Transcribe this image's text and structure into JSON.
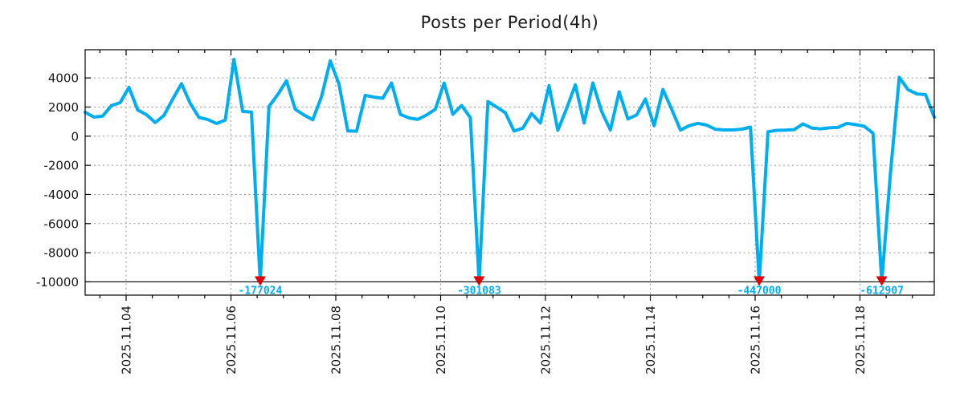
{
  "chart_data": {
    "type": "line",
    "title": "Posts per Period(4h)",
    "period": "4h",
    "line_color": "#00AEF0",
    "annotation_text_color": "#00AEF0",
    "arrow_color": "#E00000",
    "grid": true,
    "grid_color": "#999999",
    "x_tick_labels": [
      "2025.11.04",
      "2025.11.06",
      "2025.11.08",
      "2025.11.10",
      "2025.11.12",
      "2025.11.14",
      "2025.11.16",
      "2025.11.18"
    ],
    "y_ticks": [
      4000,
      2000,
      0,
      -2000,
      -4000,
      -6000,
      -8000,
      -10000
    ],
    "ylim": [
      -10911,
      5933
    ],
    "clip_min": -10000,
    "baseline_rule_value": -10000,
    "values": [
      1640,
      1310,
      1380,
      2100,
      2300,
      3350,
      1800,
      1475,
      935,
      1420,
      2550,
      3600,
      2250,
      1280,
      1150,
      870,
      1100,
      5270,
      1700,
      1650,
      -177024,
      2040,
      2850,
      3800,
      1850,
      1450,
      1130,
      2700,
      5160,
      3570,
      360,
      340,
      2800,
      2680,
      2600,
      3650,
      1500,
      1250,
      1150,
      1450,
      1850,
      3650,
      1500,
      2100,
      1270,
      -301083,
      2370,
      2000,
      1600,
      350,
      550,
      1550,
      900,
      3470,
      400,
      1900,
      3530,
      900,
      3650,
      1700,
      420,
      3050,
      1180,
      1450,
      2550,
      720,
      3200,
      1850,
      420,
      720,
      880,
      760,
      470,
      430,
      430,
      480,
      620,
      -447000,
      300,
      400,
      420,
      450,
      840,
      560,
      500,
      570,
      600,
      880,
      790,
      680,
      200,
      -612907,
      -2500,
      4040,
      3190,
      2900,
      2850,
      1300
    ],
    "annotations": [
      {
        "index": 20,
        "label": "-177024",
        "value": -177024
      },
      {
        "index": 45,
        "label": "-301083",
        "value": -301083
      },
      {
        "index": 77,
        "label": "-447000",
        "value": -447000
      },
      {
        "index": 91,
        "label": "-612907",
        "value": -612907
      }
    ]
  }
}
